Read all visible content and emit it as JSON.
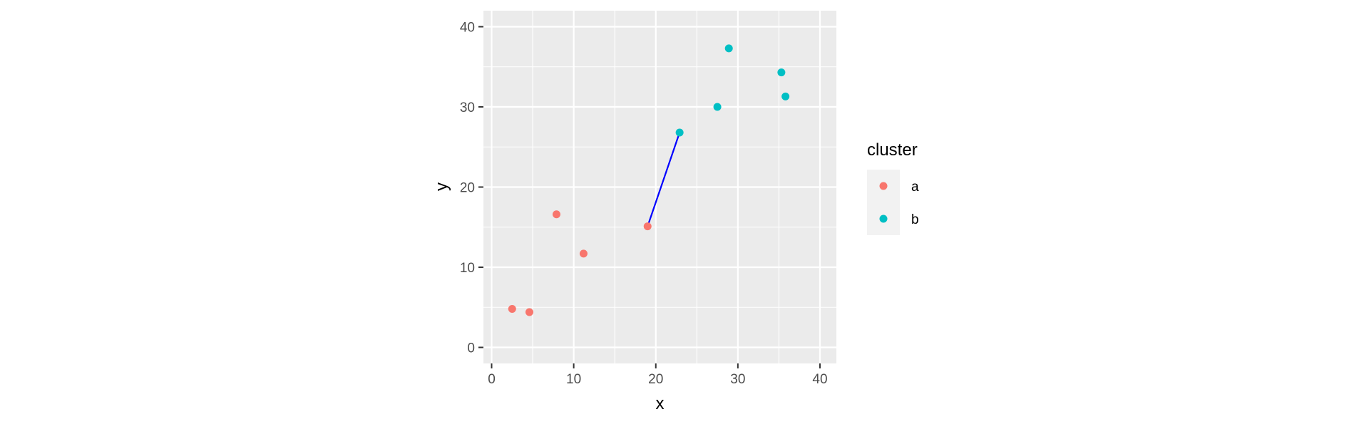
{
  "chart_data": {
    "type": "scatter",
    "xlabel": "x",
    "ylabel": "y",
    "xlim": [
      -1,
      42
    ],
    "ylim": [
      -2,
      42
    ],
    "x_ticks": [
      0,
      10,
      20,
      30,
      40
    ],
    "y_ticks": [
      0,
      10,
      20,
      30,
      40
    ],
    "grid": true,
    "legend": {
      "title": "cluster",
      "position": "right",
      "entries": [
        {
          "label": "a",
          "color": "#F8766D"
        },
        {
          "label": "b",
          "color": "#00BFC4"
        }
      ]
    },
    "series": [
      {
        "name": "a",
        "color": "#F8766D",
        "points": [
          {
            "x": 2.5,
            "y": 4.8
          },
          {
            "x": 4.6,
            "y": 4.4
          },
          {
            "x": 7.9,
            "y": 16.6
          },
          {
            "x": 11.2,
            "y": 11.7
          },
          {
            "x": 19.0,
            "y": 15.1
          }
        ]
      },
      {
        "name": "b",
        "color": "#00BFC4",
        "points": [
          {
            "x": 22.9,
            "y": 26.8
          },
          {
            "x": 27.5,
            "y": 30.0
          },
          {
            "x": 28.9,
            "y": 37.3
          },
          {
            "x": 35.3,
            "y": 34.3
          },
          {
            "x": 35.8,
            "y": 31.3
          }
        ]
      }
    ],
    "segments": [
      {
        "x1": 19.0,
        "y1": 15.1,
        "x2": 22.9,
        "y2": 26.8,
        "color": "#0000FF"
      }
    ]
  }
}
